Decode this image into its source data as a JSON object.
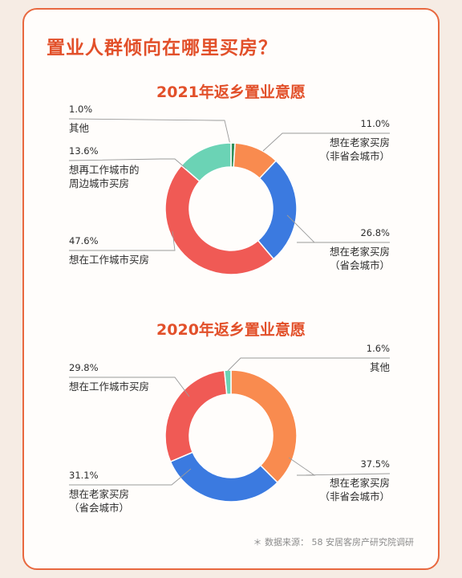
{
  "main_title": "置业人群倾向在哪里买房？",
  "source": "＊ 数据来源： 58 安居客房产研究院调研",
  "colors": {
    "accent": "#e2502a",
    "other": "#2f8f5a",
    "hometown_non_capital": "#f98b4f",
    "hometown_capital": "#3b7ae0",
    "work_city": "#f05a55",
    "nearby_work_city": "#6bd3b5"
  },
  "chart_data": [
    {
      "type": "pie",
      "title": "2021年返乡置业意愿",
      "unit": "%",
      "slices": [
        {
          "value": 1.0,
          "value_label": "1.0%",
          "label": [
            "其他"
          ],
          "color": "#2f8f5a"
        },
        {
          "value": 11.0,
          "value_label": "11.0%",
          "label": [
            "想在老家买房",
            "（非省会城市）"
          ],
          "color": "#f98b4f"
        },
        {
          "value": 26.8,
          "value_label": "26.8%",
          "label": [
            "想在老家买房",
            "（省会城市）"
          ],
          "color": "#3b7ae0"
        },
        {
          "value": 47.6,
          "value_label": "47.6%",
          "label": [
            "想在工作城市买房"
          ],
          "color": "#f05a55"
        },
        {
          "value": 13.6,
          "value_label": "13.6%",
          "label": [
            "想再工作城市的",
            "周边城市买房"
          ],
          "color": "#6bd3b5"
        }
      ]
    },
    {
      "type": "pie",
      "title": "2020年返乡置业意愿",
      "unit": "%",
      "slices": [
        {
          "value": 37.5,
          "value_label": "37.5%",
          "label": [
            "想在老家买房",
            "（非省会城市）"
          ],
          "color": "#f98b4f"
        },
        {
          "value": 31.1,
          "value_label": "31.1%",
          "label": [
            "想在老家买房",
            "（省会城市）"
          ],
          "color": "#3b7ae0"
        },
        {
          "value": 29.8,
          "value_label": "29.8%",
          "label": [
            "想在工作城市买房"
          ],
          "color": "#f05a55"
        },
        {
          "value": 1.6,
          "value_label": "1.6%",
          "label": [
            "其他"
          ],
          "color": "#6bd3b5"
        }
      ]
    }
  ]
}
